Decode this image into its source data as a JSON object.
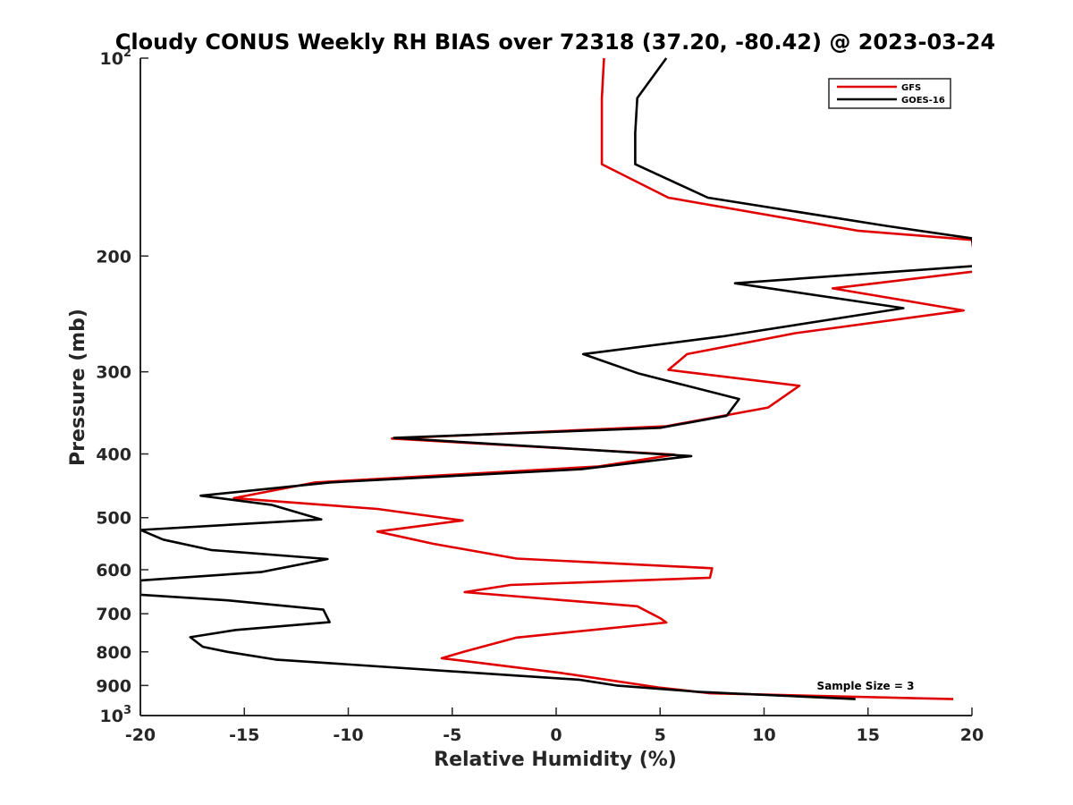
{
  "chart_data": {
    "type": "line",
    "title": "Cloudy CONUS Weekly RH BIAS over 72318 (37.20, -80.42) @ 2023-03-24",
    "xlabel": "Relative Humidity (%)",
    "ylabel": "Pressure (mb)",
    "xlim": [
      -20,
      20
    ],
    "ylim": [
      100,
      1000
    ],
    "yscale": "log",
    "yreversed": true,
    "grid": false,
    "legend_position": "top-right",
    "x_ticks": [
      "-20",
      "-15",
      "-10",
      "-5",
      "0",
      "5",
      "10",
      "15",
      "20"
    ],
    "y_ticks": [
      {
        "value": 100,
        "base": "10",
        "exp": "2"
      },
      {
        "value": 200,
        "label": "200"
      },
      {
        "value": 300,
        "label": "300"
      },
      {
        "value": 400,
        "label": "400"
      },
      {
        "value": 500,
        "label": "500"
      },
      {
        "value": 600,
        "label": "600"
      },
      {
        "value": 700,
        "label": "700"
      },
      {
        "value": 800,
        "label": "800"
      },
      {
        "value": 900,
        "label": "900"
      },
      {
        "value": 1000,
        "base": "10",
        "exp": "3"
      }
    ],
    "annotation": "Sample Size = 3",
    "series": [
      {
        "name": "GFS",
        "color": "#e00000",
        "points": [
          [
            2.3,
            100
          ],
          [
            2.2,
            115
          ],
          [
            2.2,
            130
          ],
          [
            2.2,
            145
          ],
          [
            5.4,
            163
          ],
          [
            14.5,
            183
          ],
          [
            20.0,
            189
          ],
          [
            20.2,
            211
          ],
          [
            13.3,
            224
          ],
          [
            19.6,
            242
          ],
          [
            11.5,
            262
          ],
          [
            6.3,
            282
          ],
          [
            5.4,
            298
          ],
          [
            11.7,
            315
          ],
          [
            10.2,
            340
          ],
          [
            5.3,
            363
          ],
          [
            -7.9,
            379
          ],
          [
            5.7,
            401
          ],
          [
            2.0,
            418
          ],
          [
            -11.6,
            442
          ],
          [
            -15.5,
            467
          ],
          [
            -8.6,
            485
          ],
          [
            -4.5,
            505
          ],
          [
            -8.6,
            525
          ],
          [
            -5.9,
            548
          ],
          [
            -1.9,
            577
          ],
          [
            7.5,
            597
          ],
          [
            7.4,
            617
          ],
          [
            -2.2,
            633
          ],
          [
            -4.4,
            649
          ],
          [
            3.9,
            682
          ],
          [
            5.0,
            711
          ],
          [
            5.3,
            722
          ],
          [
            -1.9,
            761
          ],
          [
            -4.4,
            799
          ],
          [
            -5.5,
            818
          ],
          [
            0.3,
            862
          ],
          [
            4.9,
            906
          ],
          [
            7.4,
            925
          ],
          [
            19.1,
            944
          ]
        ]
      },
      {
        "name": "GOES-16",
        "color": "#000000",
        "points": [
          [
            5.3,
            100
          ],
          [
            3.9,
            115
          ],
          [
            3.8,
            130
          ],
          [
            3.8,
            145
          ],
          [
            7.3,
            163
          ],
          [
            15.9,
            180
          ],
          [
            20.0,
            188
          ],
          [
            20.2,
            207
          ],
          [
            8.6,
            220
          ],
          [
            16.7,
            240
          ],
          [
            8.0,
            265
          ],
          [
            1.3,
            282
          ],
          [
            4.0,
            302
          ],
          [
            8.8,
            330
          ],
          [
            8.2,
            350
          ],
          [
            5.0,
            365
          ],
          [
            -7.8,
            378
          ],
          [
            6.5,
            403
          ],
          [
            1.2,
            422
          ],
          [
            -10.9,
            442
          ],
          [
            -17.1,
            463
          ],
          [
            -13.7,
            478
          ],
          [
            -11.3,
            503
          ],
          [
            -20.0,
            522
          ],
          [
            -18.9,
            540
          ],
          [
            -16.6,
            560
          ],
          [
            -11.0,
            578
          ],
          [
            -14.2,
            605
          ],
          [
            -20.0,
            623
          ],
          [
            -20.0,
            655
          ],
          [
            -15.8,
            668
          ],
          [
            -11.2,
            690
          ],
          [
            -10.9,
            721
          ],
          [
            -15.4,
            741
          ],
          [
            -17.6,
            760
          ],
          [
            -17.0,
            786
          ],
          [
            -15.8,
            800
          ],
          [
            -13.5,
            822
          ],
          [
            -2.0,
            869
          ],
          [
            1.1,
            882
          ],
          [
            2.9,
            900
          ],
          [
            6.8,
            920
          ],
          [
            14.4,
            944
          ]
        ]
      }
    ]
  }
}
